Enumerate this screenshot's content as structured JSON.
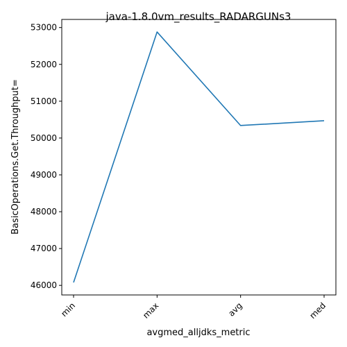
{
  "chart_data": {
    "type": "line",
    "title": "java-1.8.0vm_results_RADARGUNs3",
    "xlabel": "avgmed_alljdks_metric",
    "ylabel": "BasicOperations.Get.Throughput=",
    "categories": [
      "min",
      "max",
      "avg",
      "med"
    ],
    "series": [
      {
        "values": [
          46080,
          52880,
          50340,
          50470
        ],
        "color": "#1f77b4"
      }
    ],
    "yticks": [
      46000,
      47000,
      48000,
      49000,
      50000,
      51000,
      52000,
      53000
    ],
    "ylim": [
      45740,
      53220
    ],
    "grid": false,
    "legend": "none"
  }
}
